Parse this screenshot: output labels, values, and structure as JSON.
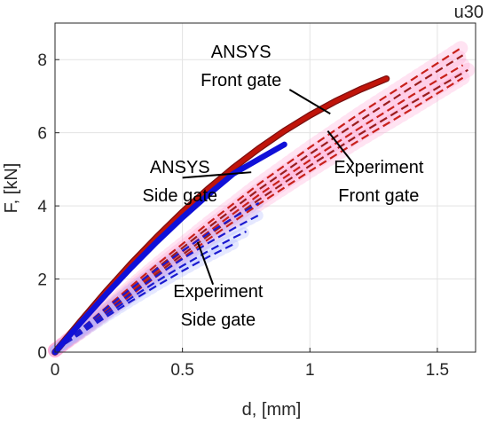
{
  "chart_data": {
    "type": "line",
    "title": "",
    "corner_label": "u30",
    "xlabel": "d, [mm]",
    "ylabel": "F, [kN]",
    "xlim": [
      0,
      1.65
    ],
    "ylim": [
      0,
      9
    ],
    "xticks": [
      0,
      0.5,
      1,
      1.5
    ],
    "xtick_labels": [
      "0",
      "0.5",
      "1",
      "1.5"
    ],
    "yticks": [
      0,
      2,
      4,
      6,
      8
    ],
    "ytick_labels": [
      "0",
      "2",
      "4",
      "6",
      "8"
    ],
    "grid": true,
    "colors": {
      "ansys_front": "#c0140a",
      "ansys_front_edge": "#7a1010",
      "ansys_side": "#1010d8",
      "exp_front": "#c8201a",
      "exp_front_dark": "#9a1d1d",
      "exp_side": "#1a1ad0",
      "exp_front_band": "#ff9ad2",
      "exp_side_band": "#a8b4ff"
    },
    "series": [
      {
        "kind": "ansys-front",
        "style": "solid-thick",
        "x": [
          0,
          0.1,
          0.2,
          0.3,
          0.4,
          0.5,
          0.6,
          0.7,
          0.8,
          0.9,
          1.0,
          1.1,
          1.2,
          1.3
        ],
        "y": [
          0,
          0.84,
          1.66,
          2.43,
          3.15,
          3.83,
          4.46,
          5.04,
          5.57,
          6.05,
          6.48,
          6.86,
          7.19,
          7.48
        ]
      },
      {
        "kind": "ansys-side",
        "style": "solid-thick",
        "x": [
          0,
          0.1,
          0.2,
          0.3,
          0.4,
          0.5,
          0.6,
          0.7,
          0.8,
          0.9
        ],
        "y": [
          0,
          0.8,
          1.58,
          2.32,
          3.02,
          3.68,
          4.3,
          4.88,
          5.28,
          5.68
        ]
      },
      {
        "kind": "exp-front",
        "style": "dashed",
        "x": [
          0,
          0.1,
          0.2,
          0.4,
          0.6,
          0.8,
          1.0,
          1.2,
          1.4,
          1.6
        ],
        "y": [
          0.05,
          0.62,
          1.22,
          2.4,
          3.52,
          4.6,
          5.6,
          6.55,
          7.45,
          8.35
        ]
      },
      {
        "kind": "exp-front",
        "style": "dashed",
        "x": [
          0,
          0.1,
          0.2,
          0.4,
          0.6,
          0.8,
          1.0,
          1.2,
          1.4,
          1.6
        ],
        "y": [
          0.05,
          0.6,
          1.18,
          2.3,
          3.4,
          4.45,
          5.42,
          6.35,
          7.25,
          8.12
        ]
      },
      {
        "kind": "exp-front",
        "style": "dashed",
        "x": [
          0,
          0.1,
          0.2,
          0.4,
          0.6,
          0.8,
          1.0,
          1.2,
          1.4,
          1.6
        ],
        "y": [
          0.05,
          0.58,
          1.13,
          2.22,
          3.28,
          4.3,
          5.25,
          6.15,
          7.02,
          7.85
        ]
      },
      {
        "kind": "exp-front",
        "style": "dashed",
        "x": [
          0,
          0.1,
          0.2,
          0.4,
          0.6,
          0.8,
          1.0,
          1.2,
          1.4,
          1.62
        ],
        "y": [
          0.05,
          0.56,
          1.1,
          2.15,
          3.18,
          4.17,
          5.1,
          5.98,
          6.82,
          7.72
        ]
      },
      {
        "kind": "exp-front",
        "style": "dashed",
        "x": [
          0,
          0.1,
          0.2,
          0.4,
          0.6,
          0.8,
          1.0,
          1.2,
          1.4,
          1.6
        ],
        "y": [
          0.05,
          0.54,
          1.06,
          2.08,
          3.08,
          4.05,
          4.95,
          5.82,
          6.65,
          7.5
        ]
      },
      {
        "kind": "exp-side",
        "style": "dashed",
        "x": [
          0,
          0.1,
          0.2,
          0.3,
          0.4,
          0.5,
          0.6,
          0.7,
          0.8
        ],
        "y": [
          0.05,
          0.62,
          1.2,
          1.75,
          2.27,
          2.77,
          3.24,
          3.68,
          4.08
        ]
      },
      {
        "kind": "exp-side",
        "style": "dashed",
        "x": [
          0,
          0.1,
          0.2,
          0.3,
          0.4,
          0.5,
          0.6,
          0.7,
          0.8
        ],
        "y": [
          0.05,
          0.57,
          1.1,
          1.61,
          2.09,
          2.55,
          2.98,
          3.38,
          3.75
        ]
      },
      {
        "kind": "exp-side",
        "style": "dashed",
        "x": [
          0,
          0.1,
          0.2,
          0.3,
          0.4,
          0.5,
          0.6,
          0.7,
          0.75
        ],
        "y": [
          0.05,
          0.53,
          1.02,
          1.49,
          1.94,
          2.36,
          2.76,
          3.13,
          3.3
        ]
      },
      {
        "kind": "exp-side",
        "style": "dashed",
        "x": [
          0,
          0.1,
          0.2,
          0.3,
          0.4,
          0.5,
          0.6,
          0.7
        ],
        "y": [
          0.05,
          0.5,
          0.96,
          1.4,
          1.82,
          2.22,
          2.6,
          2.95
        ]
      }
    ],
    "annotations": [
      {
        "lines": [
          "ANSYS",
          "Front gate"
        ],
        "x": 0.73,
        "y": 8.05,
        "align": "middle",
        "arrow_from": [
          0.92,
          7.18
        ],
        "arrow_to": [
          1.08,
          6.52
        ]
      },
      {
        "lines": [
          "ANSYS",
          "Side gate"
        ],
        "x": 0.49,
        "y": 4.9,
        "align": "middle",
        "arrow_from": [
          0.5,
          4.77
        ],
        "arrow_to": [
          0.77,
          4.92
        ]
      },
      {
        "lines": [
          "Experiment",
          "Front gate"
        ],
        "x": 1.27,
        "y": 4.9,
        "align": "middle",
        "arrow_from": [
          1.17,
          5.16
        ],
        "arrow_to": [
          1.07,
          6.05
        ]
      },
      {
        "lines": [
          "Experiment",
          "Side gate"
        ],
        "x": 0.64,
        "y": 1.5,
        "align": "middle",
        "arrow_from": [
          0.62,
          1.85
        ],
        "arrow_to": [
          0.56,
          3.01
        ]
      }
    ]
  }
}
